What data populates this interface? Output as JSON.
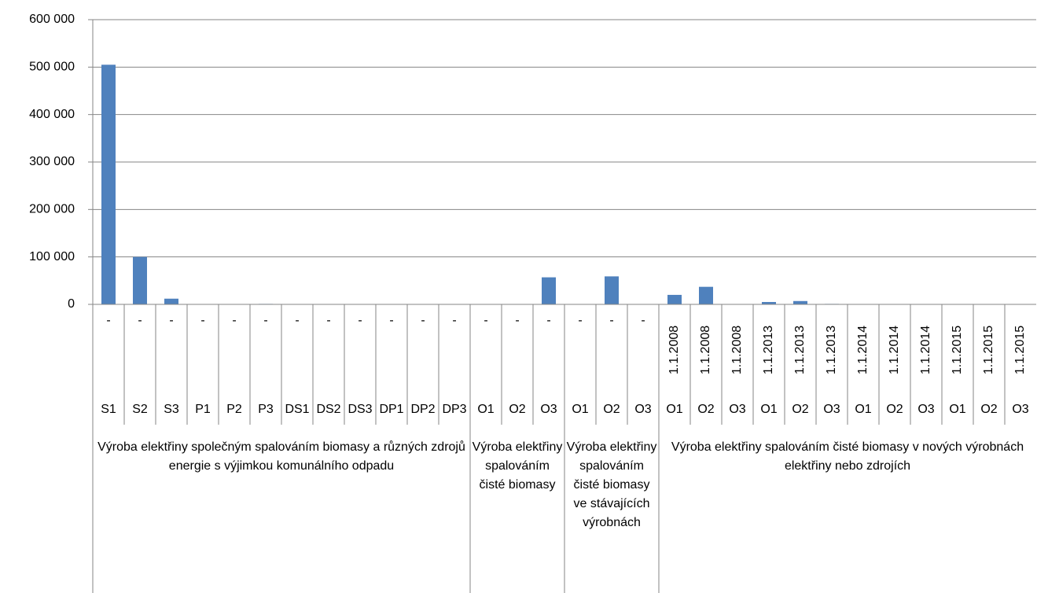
{
  "chart_data": {
    "type": "bar",
    "color": "#4f81bd",
    "grid": true,
    "ylim": [
      0,
      600000
    ],
    "yticks": [
      0,
      {
        "value": 100000,
        "label": "100 000"
      },
      {
        "value": 200000,
        "label": "200 000"
      },
      {
        "value": 300000,
        "label": "300 000"
      },
      {
        "value": 400000,
        "label": "400 000"
      },
      {
        "value": 500000,
        "label": "500 000"
      },
      {
        "value": 600000,
        "label": "600 000"
      }
    ],
    "groups": [
      {
        "name": "Výroba elektřiny společným spalováním biomasy a různých zdrojů energie s výjimkou komunálního odpadu",
        "dates": [
          "-",
          "-",
          "-",
          "-",
          "-",
          "-",
          "-",
          "-",
          "-",
          "-",
          "-",
          "-"
        ],
        "codes": [
          "S1",
          "S2",
          "S3",
          "P1",
          "P2",
          "P3",
          "DS1",
          "DS2",
          "DS3",
          "DP1",
          "DP2",
          "DP3"
        ],
        "values": [
          505000,
          100000,
          12000,
          0,
          0,
          1000,
          0,
          0,
          0,
          0,
          0,
          0
        ]
      },
      {
        "name": "Výroba elektřiny spalováním čisté biomasy",
        "dates": [
          "-",
          "-",
          "-"
        ],
        "codes": [
          "O1",
          "O2",
          "O3"
        ],
        "values": [
          0,
          0,
          57000
        ]
      },
      {
        "name": "Výroba elektřiny spalováním čisté biomasy ve stávajících výrobnách",
        "dates": [
          "-",
          "-",
          "-"
        ],
        "codes": [
          "O1",
          "O2",
          "O3"
        ],
        "values": [
          0,
          59000,
          0
        ]
      },
      {
        "name": "Výroba elektřiny spalováním čisté biomasy v nových výrobnách elektřiny nebo zdrojích",
        "dates": [
          "1.1.2008",
          "1.1.2008",
          "1.1.2008",
          "1.1.2013",
          "1.1.2013",
          "1.1.2013",
          "1.1.2014",
          "1.1.2014",
          "1.1.2014",
          "1.1.2015",
          "1.1.2015",
          "1.1.2015"
        ],
        "codes": [
          "O1",
          "O2",
          "O3",
          "O1",
          "O2",
          "O3",
          "O1",
          "O2",
          "O3",
          "O1",
          "O2",
          "O3"
        ],
        "values": [
          20000,
          37000,
          0,
          5000,
          7000,
          1000,
          0,
          0,
          0,
          0,
          0,
          0
        ]
      }
    ]
  }
}
